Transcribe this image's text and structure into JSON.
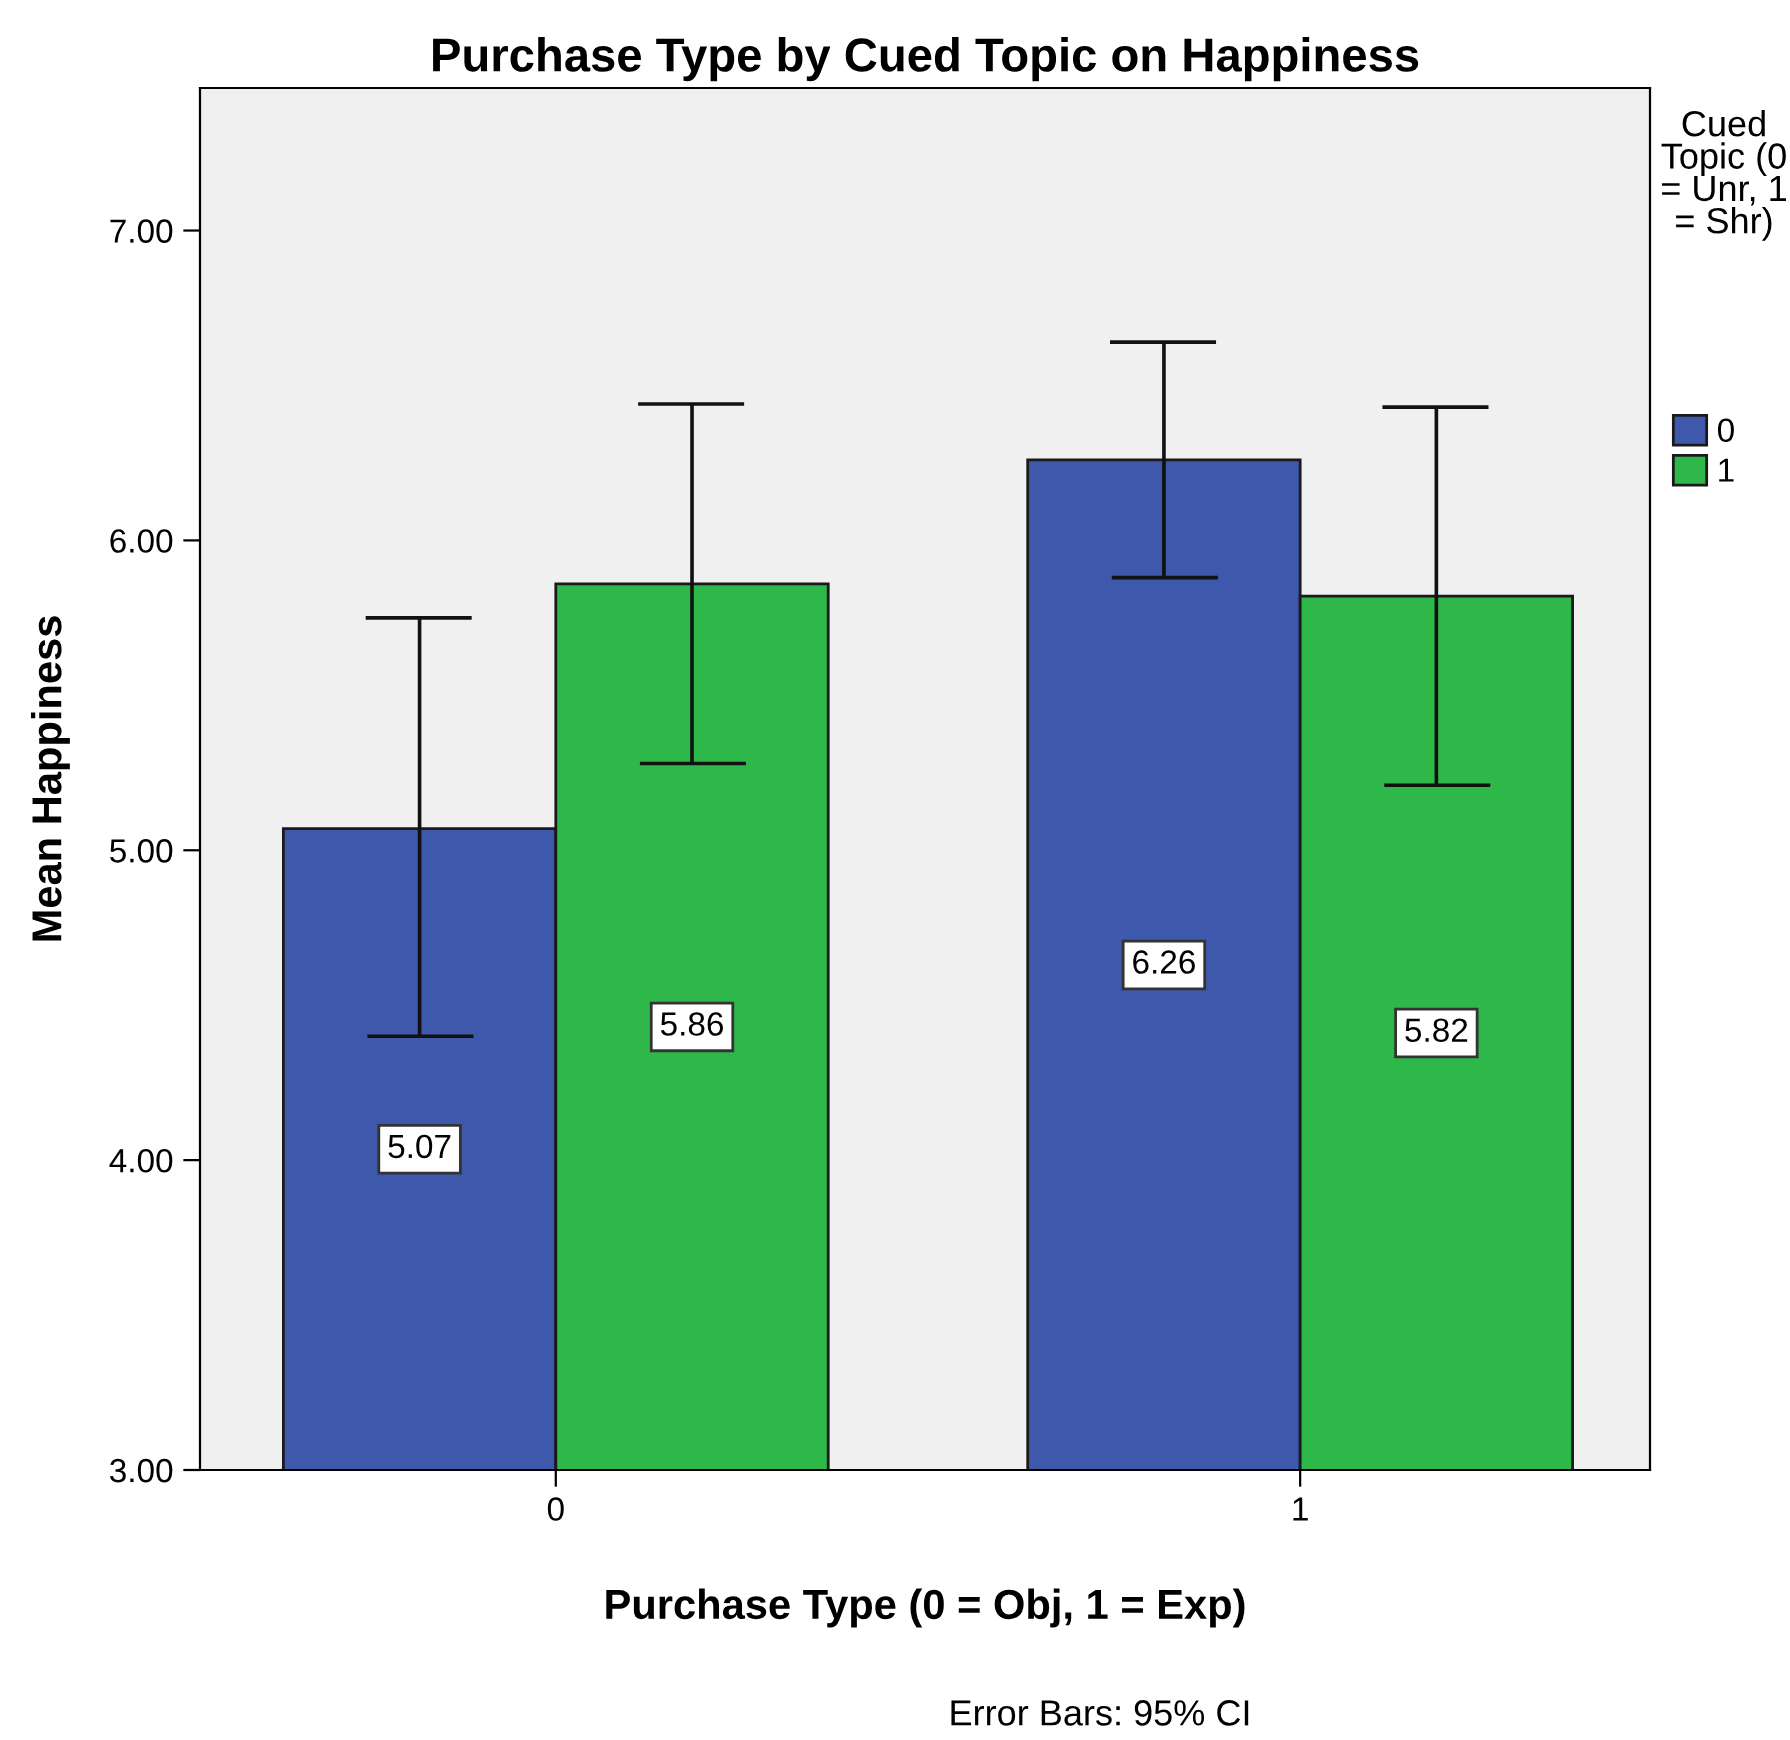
{
  "chart_data": {
    "type": "bar",
    "title": "Purchase Type by Cued Topic on Happiness",
    "xlabel": "Purchase Type (0 = Obj, 1 = Exp)",
    "ylabel": "Mean Happiness",
    "legend_title": "Cued Topic (0 = Unr, 1 = Shr)",
    "categories": [
      "0",
      "1"
    ],
    "series": [
      {
        "name": "0",
        "color": "#3e58ac",
        "values": [
          5.07,
          6.26
        ],
        "errors": [
          [
            4.4,
            5.75
          ],
          [
            5.88,
            6.64
          ]
        ]
      },
      {
        "name": "1",
        "color": "#2eb84a",
        "values": [
          5.86,
          5.82
        ],
        "errors": [
          [
            5.28,
            6.44
          ],
          [
            5.21,
            6.43
          ]
        ]
      }
    ],
    "ylim": [
      3,
      7.46
    ],
    "yticks": [
      {
        "value": 3,
        "label": "3.00"
      },
      {
        "value": 4,
        "label": "4.00"
      },
      {
        "value": 5,
        "label": "5.00"
      },
      {
        "value": 6,
        "label": "6.00"
      },
      {
        "value": 7,
        "label": "7.00"
      }
    ],
    "data_labels": true,
    "grid": false,
    "legend": "right",
    "annotations": [
      "Error Bars: 95% CI"
    ]
  }
}
